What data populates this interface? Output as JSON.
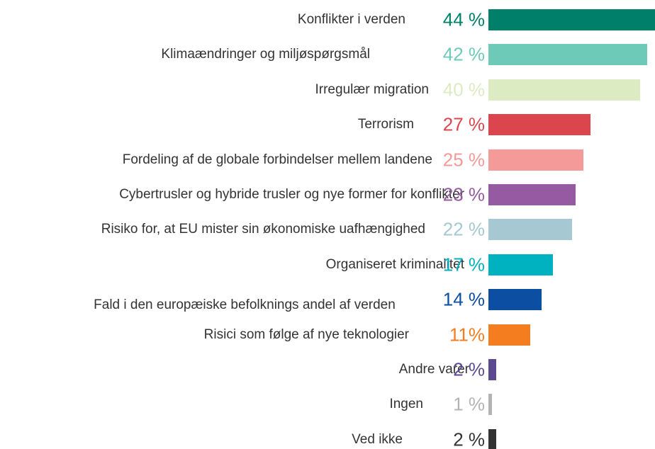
{
  "chart_data": {
    "type": "bar",
    "orientation": "horizontal",
    "categories": [
      "Konflikter i verden",
      "Klimaændringer og miljøspørgsmål",
      "Irregulær migration",
      "Terrorism",
      "Fordeling af de globale forbindelser mellem landene",
      "Cybertrusler og hybride trusler og nye former for konflikter",
      "Risiko for, at EU mister sin økonomiske uafhængighed",
      "Organiseret kriminalitet",
      "Fald i den europæiske befolknings andel af verden",
      "Risici som følge af nye teknologier",
      "Andre varer",
      "Ingen",
      "Ved ikke"
    ],
    "values": [
      44,
      42,
      40,
      27,
      25,
      23,
      22,
      17,
      14,
      11,
      2,
      1,
      2
    ],
    "value_labels": [
      "44 %",
      "42 %",
      "40 %",
      "27 %",
      "25 %",
      "23 %",
      "22 %",
      "17 %",
      "14 %",
      "11%",
      "2 %",
      "1 %",
      "2 %"
    ],
    "colors": [
      "#007f6a",
      "#6ecab8",
      "#dcebc2",
      "#dc454e",
      "#f49a98",
      "#955aa1",
      "#a5c8d2",
      "#00b2c0",
      "#0b4ea2",
      "#f47d20",
      "#5b4a8f",
      "#b3b3b3",
      "#333333"
    ]
  }
}
